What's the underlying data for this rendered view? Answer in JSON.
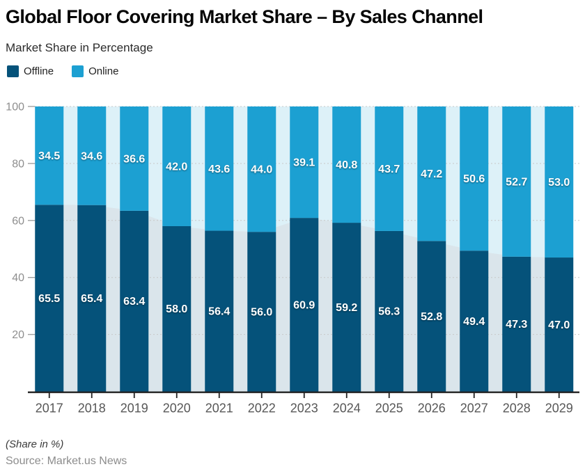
{
  "footer": {
    "note": "(Share in %)",
    "source": "Source: Market.us News"
  },
  "chart_data": {
    "type": "bar",
    "variant": "stacked-percent-columns-with-faded-area-background",
    "title": "Global Floor Covering Market Share – By Sales Channel",
    "subtitle": "Market Share in Percentage",
    "categories": [
      "2017",
      "2018",
      "2019",
      "2020",
      "2021",
      "2022",
      "2023",
      "2024",
      "2025",
      "2026",
      "2027",
      "2028",
      "2029"
    ],
    "series": [
      {
        "name": "Offline",
        "color": "#05527a",
        "values": [
          65.5,
          65.4,
          63.4,
          58.0,
          56.4,
          56.0,
          60.9,
          59.2,
          56.3,
          52.8,
          49.4,
          47.3,
          47.0
        ]
      },
      {
        "name": "Online",
        "color": "#1ca0d2",
        "values": [
          34.5,
          34.6,
          36.6,
          42.0,
          43.6,
          44.0,
          39.1,
          40.8,
          43.7,
          47.2,
          50.6,
          52.7,
          53.0
        ]
      }
    ],
    "ylim": [
      0,
      100
    ],
    "yticks": [
      20,
      40,
      60,
      80,
      100
    ],
    "xlabel": "",
    "ylabel": "",
    "grid": "horizontal dotted",
    "gridline_color": "#c8c8c8",
    "axis_color": "#222222",
    "background_area_opacity": 0.15,
    "value_label_format": "one decimal, white bold, centered in segment",
    "legend_position": "top-left"
  }
}
